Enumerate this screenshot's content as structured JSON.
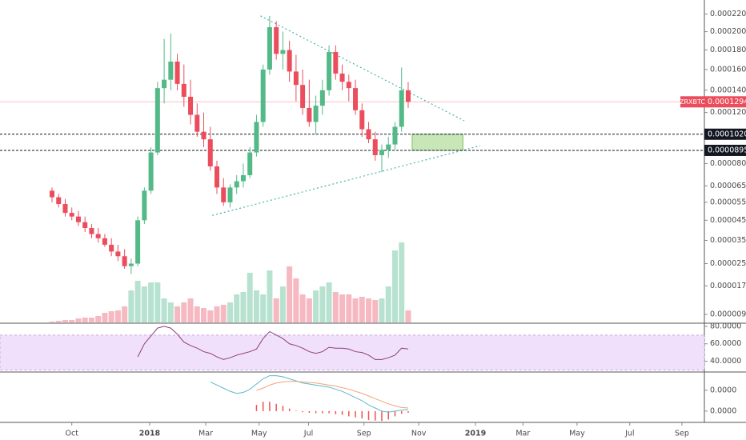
{
  "chart_data": [
    {
      "type": "candlestick",
      "symbol": "ZRXBTC",
      "up_color": "#53b987",
      "down_color": "#eb4d5c",
      "open": [
        6.2e-05,
        5.8e-05,
        5.4e-05,
        4.9e-05,
        4.7e-05,
        4.4e-05,
        4.1e-05,
        3.8e-05,
        3.6e-05,
        3.3e-05,
        3e-05,
        2.8e-05,
        2.4e-05,
        2.5e-05,
        4.5e-05,
        6.2e-05,
        8.8e-05,
        0.000142,
        0.00015,
        0.000168,
        0.000146,
        0.000134,
        0.000118,
        0.000104,
        9.8e-05,
        7.8e-05,
        6.4e-05,
        5.5e-05,
        6.4e-05,
        6.8e-05,
        7.2e-05,
        8.8e-05,
        0.000112,
        0.00016,
        0.000205,
        0.000176,
        0.00018,
        0.000158,
        0.000145,
        0.000124,
        0.000112,
        0.000126,
        0.00014,
        0.000178,
        0.000156,
        0.000148,
        0.000142,
        0.000122,
        0.000106,
        9.8e-05,
        8.6e-05,
        9e-05,
        9.4e-05,
        0.000108,
        0.00014
      ],
      "high": [
        6.4e-05,
        6e-05,
        5.7e-05,
        5.2e-05,
        5e-05,
        4.7e-05,
        4.3e-05,
        4.1e-05,
        3.8e-05,
        3.6e-05,
        3.3e-05,
        3.1e-05,
        2.7e-05,
        4.7e-05,
        6.4e-05,
        9.2e-05,
        0.000148,
        0.000192,
        0.000198,
        0.000176,
        0.000165,
        0.00015,
        0.000128,
        0.00012,
        0.000108,
        8.2e-05,
        7e-05,
        6.6e-05,
        7.2e-05,
        8e-05,
        9.2e-05,
        0.000118,
        0.000165,
        0.000218,
        0.000212,
        0.0002,
        0.00019,
        0.000175,
        0.00016,
        0.00015,
        0.000135,
        0.00015,
        0.000185,
        0.000185,
        0.000165,
        0.000155,
        0.00015,
        0.000128,
        0.000112,
        0.000104,
        9.4e-05,
        0.0001,
        0.000112,
        0.000162,
        0.000148
      ],
      "low": [
        5.5e-05,
        5.2e-05,
        4.7e-05,
        4.5e-05,
        4.2e-05,
        3.9e-05,
        3.6e-05,
        3.4e-05,
        3.2e-05,
        2.8e-05,
        2.6e-05,
        2.3e-05,
        2.1e-05,
        2.4e-05,
        4.3e-05,
        6e-05,
        8.6e-05,
        0.000128,
        0.00014,
        0.00014,
        0.000125,
        0.00011,
        0.0001,
        9.2e-05,
        7.5e-05,
        6e-05,
        5.3e-05,
        5.2e-05,
        6e-05,
        6.4e-05,
        7e-05,
        8.5e-05,
        0.000108,
        0.000155,
        0.00017,
        0.00016,
        0.000148,
        0.00013,
        0.000118,
        0.000108,
        0.000102,
        0.000118,
        0.000135,
        0.00015,
        0.00014,
        0.00013,
        0.000118,
        0.0001,
        9.5e-05,
        8.2e-05,
        7.4e-05,
        8.4e-05,
        9e-05,
        0.000104,
        0.000124
      ],
      "close": [
        5.8e-05,
        5.4e-05,
        4.9e-05,
        4.7e-05,
        4.4e-05,
        4.1e-05,
        3.8e-05,
        3.6e-05,
        3.3e-05,
        3e-05,
        2.8e-05,
        2.4e-05,
        2.5e-05,
        4.5e-05,
        6.2e-05,
        8.8e-05,
        0.000142,
        0.00015,
        0.000168,
        0.000146,
        0.000134,
        0.000118,
        0.000104,
        9.8e-05,
        7.8e-05,
        6.4e-05,
        5.5e-05,
        6.4e-05,
        6.8e-05,
        7.2e-05,
        8.8e-05,
        0.000112,
        0.00016,
        0.000205,
        0.000176,
        0.00018,
        0.000158,
        0.000145,
        0.000124,
        0.000112,
        0.000126,
        0.00014,
        0.000178,
        0.000156,
        0.000148,
        0.000142,
        0.000122,
        0.000106,
        9.8e-05,
        8.6e-05,
        9e-05,
        9.4e-05,
        0.000108,
        0.00014,
        0.00012941
      ],
      "ylim": [
        7.2e-06,
        0.000232
      ],
      "yticks": [
        {
          "value": 0.00022,
          "label": "0.00022000"
        },
        {
          "value": 0.0002,
          "label": "0.00020000"
        },
        {
          "value": 0.00018,
          "label": "0.00018000"
        },
        {
          "value": 0.00016,
          "label": "0.00016000"
        },
        {
          "value": 0.00014,
          "label": "0.00014000"
        },
        {
          "value": 0.00012,
          "label": "0.00012000"
        },
        {
          "value": 8e-05,
          "label": "0.00008000"
        },
        {
          "value": 6.5e-05,
          "label": "0.00006500"
        },
        {
          "value": 5.5e-05,
          "label": "0.00005500"
        },
        {
          "value": 4.5e-05,
          "label": "0.00004500"
        },
        {
          "value": 3.5e-05,
          "label": "0.00003500"
        },
        {
          "value": 2.5e-05,
          "label": "0.00002500"
        },
        {
          "value": 1.7e-05,
          "label": "0.00001700"
        },
        {
          "value": 9e-06,
          "label": "0.00000900"
        }
      ],
      "xticks": [
        {
          "value": 3.0,
          "label": "Oct"
        },
        {
          "value": 14.8,
          "label": "2018"
        },
        {
          "value": 23.3,
          "label": "Mar"
        },
        {
          "value": 31.4,
          "label": "May"
        },
        {
          "value": 38.9,
          "label": "Jul"
        },
        {
          "value": 47.3,
          "label": "Sep"
        },
        {
          "value": 55.6,
          "label": "Nov"
        },
        {
          "value": 64.2,
          "label": "2019"
        },
        {
          "value": 71.4,
          "label": "Mar"
        },
        {
          "value": 79.6,
          "label": "May"
        },
        {
          "value": 87.6,
          "label": "Jul"
        },
        {
          "value": 95.5,
          "label": "Sep"
        }
      ],
      "price_lines": [
        {
          "value": 0.00012941,
          "color": "#eb4d5c",
          "style": "solid"
        },
        {
          "value": 0.00010201,
          "color": "#131722",
          "style": "dashed"
        },
        {
          "value": 8.955e-05,
          "color": "#131722",
          "style": "dashed"
        }
      ],
      "zone": {
        "x": [
          54.6,
          62.3
        ],
        "color": "#c8e6b8",
        "border": "#7fbf6a"
      },
      "trendlines": [
        {
          "points": [
            [
              31.6,
              0.000218
            ],
            [
              62.5,
              0.000113
            ]
          ],
          "color": "#26a69a"
        },
        {
          "points": [
            [
              24.3,
              4.76e-05
            ],
            [
              64.9,
              9.3e-05
            ]
          ],
          "color": "#26a69a"
        }
      ]
    },
    {
      "type": "bar",
      "up_color": "#b8e2d0",
      "down_color": "#f6b9c1",
      "values": [
        1,
        2,
        3,
        3,
        5,
        6,
        6,
        8,
        12,
        14,
        15,
        20,
        40,
        52,
        45,
        50,
        50,
        30,
        25,
        20,
        25,
        30,
        20,
        18,
        15,
        20,
        22,
        25,
        35,
        38,
        62,
        40,
        35,
        65,
        30,
        45,
        70,
        55,
        35,
        30,
        40,
        45,
        50,
        38,
        35,
        35,
        30,
        32,
        30,
        28,
        30,
        45,
        90,
        100,
        15
      ]
    },
    {
      "type": "line",
      "color": "#8e3e7f",
      "band": [
        30,
        70
      ],
      "band_color": "#f0e0fb",
      "values": [
        null,
        null,
        null,
        null,
        null,
        null,
        null,
        null,
        null,
        null,
        null,
        null,
        null,
        45,
        60,
        69,
        78,
        80,
        78,
        71,
        62,
        58,
        55,
        51,
        49,
        45,
        42,
        44,
        47,
        49,
        51,
        54,
        66,
        74,
        70,
        66,
        60,
        58,
        55,
        51,
        49,
        51,
        56,
        55,
        55,
        54,
        51,
        50,
        47,
        42,
        42,
        44,
        47,
        55,
        54
      ],
      "ylim": [
        29.5,
        82.7
      ],
      "yticks": [
        {
          "value": 80,
          "label": "80.0000"
        },
        {
          "value": 60,
          "label": "60.0000"
        },
        {
          "value": 40,
          "label": "40.0000"
        }
      ]
    },
    {
      "type": "line",
      "series": [
        {
          "color": "#5cb8c9",
          "values": [
            null,
            null,
            null,
            null,
            null,
            null,
            null,
            null,
            null,
            null,
            null,
            null,
            null,
            null,
            null,
            null,
            null,
            null,
            null,
            null,
            null,
            null,
            null,
            null,
            2.8e-05,
            2.5e-05,
            2.2e-05,
            1.9e-05,
            1.7e-05,
            1.8e-05,
            2.1e-05,
            2.6e-05,
            3.1e-05,
            3.4e-05,
            3.4e-05,
            3.3e-05,
            3.1e-05,
            2.9e-05,
            2.7e-05,
            2.6e-05,
            2.5e-05,
            2.4e-05,
            2.3e-05,
            2.1e-05,
            1.9e-05,
            1.6e-05,
            1.3e-05,
            1e-05,
            6e-06,
            3e-06,
            0,
            -1e-06,
            0,
            1e-06,
            1.5e-06
          ]
        },
        {
          "color": "#f5a27a",
          "values": [
            null,
            null,
            null,
            null,
            null,
            null,
            null,
            null,
            null,
            null,
            null,
            null,
            null,
            null,
            null,
            null,
            null,
            null,
            null,
            null,
            null,
            null,
            null,
            null,
            null,
            null,
            null,
            null,
            null,
            null,
            null,
            2e-05,
            2.2e-05,
            2.5e-05,
            2.7e-05,
            2.8e-05,
            2.85e-05,
            2.85e-05,
            2.8e-05,
            2.75e-05,
            2.7e-05,
            2.6e-05,
            2.5e-05,
            2.4e-05,
            2.25e-05,
            2.1e-05,
            1.9e-05,
            1.7e-05,
            1.45e-05,
            1.2e-05,
            9.5e-06,
            7e-06,
            5e-06,
            3.5e-06,
            3e-06
          ]
        }
      ],
      "bars": {
        "color": "#ef5350",
        "values": [
          null,
          null,
          null,
          null,
          null,
          null,
          null,
          null,
          null,
          null,
          null,
          null,
          null,
          null,
          null,
          null,
          null,
          null,
          null,
          null,
          null,
          null,
          null,
          null,
          null,
          null,
          null,
          null,
          null,
          null,
          null,
          6e-06,
          9e-06,
          9e-06,
          7e-06,
          5e-06,
          2.5e-06,
          5e-07,
          -1e-06,
          -1.5e-06,
          -2e-06,
          -2e-06,
          -2e-06,
          -3e-06,
          -3.5e-06,
          -5e-06,
          -6e-06,
          -7e-06,
          -8.5e-06,
          -9e-06,
          -9.5e-06,
          -8e-06,
          -5e-06,
          -2.5e-06,
          -1.5e-06
        ]
      },
      "ylim": [
        -8.5e-06,
        3.6e-05
      ],
      "yticks": [
        {
          "value": 2e-05,
          "label": "0.0000"
        },
        {
          "value": 0,
          "label": "0.0000"
        }
      ]
    }
  ]
}
